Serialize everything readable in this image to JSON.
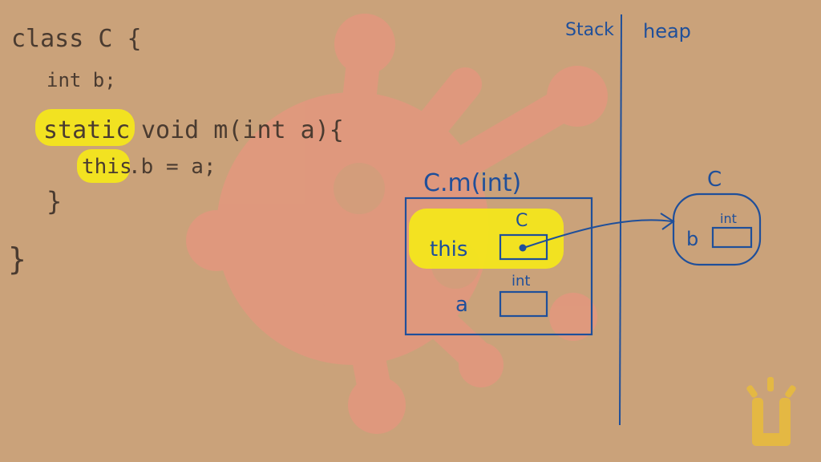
{
  "code": {
    "line1": "class C {",
    "line2": "int b;",
    "line3_kw": "static",
    "line3_rest": "void m(int a){",
    "line4_this": "this",
    "line4_rest": ".b = a;",
    "line5": "}",
    "line6": "}"
  },
  "memory": {
    "stack_label": "Stack",
    "heap_label": "heap",
    "frame_title": "C.m(int)",
    "this_label": "this",
    "this_type": "C",
    "a_label": "a",
    "a_type": "int",
    "object_type": "C",
    "field_label": "b",
    "field_type": "int"
  },
  "colors": {
    "ink": "#1f4f9a",
    "highlight": "#f3e61c",
    "watermark": "#e6957f",
    "logo": "#e9bc3a"
  },
  "icons": {
    "watermark": "virus-icon",
    "logo": "udacity-logo"
  }
}
